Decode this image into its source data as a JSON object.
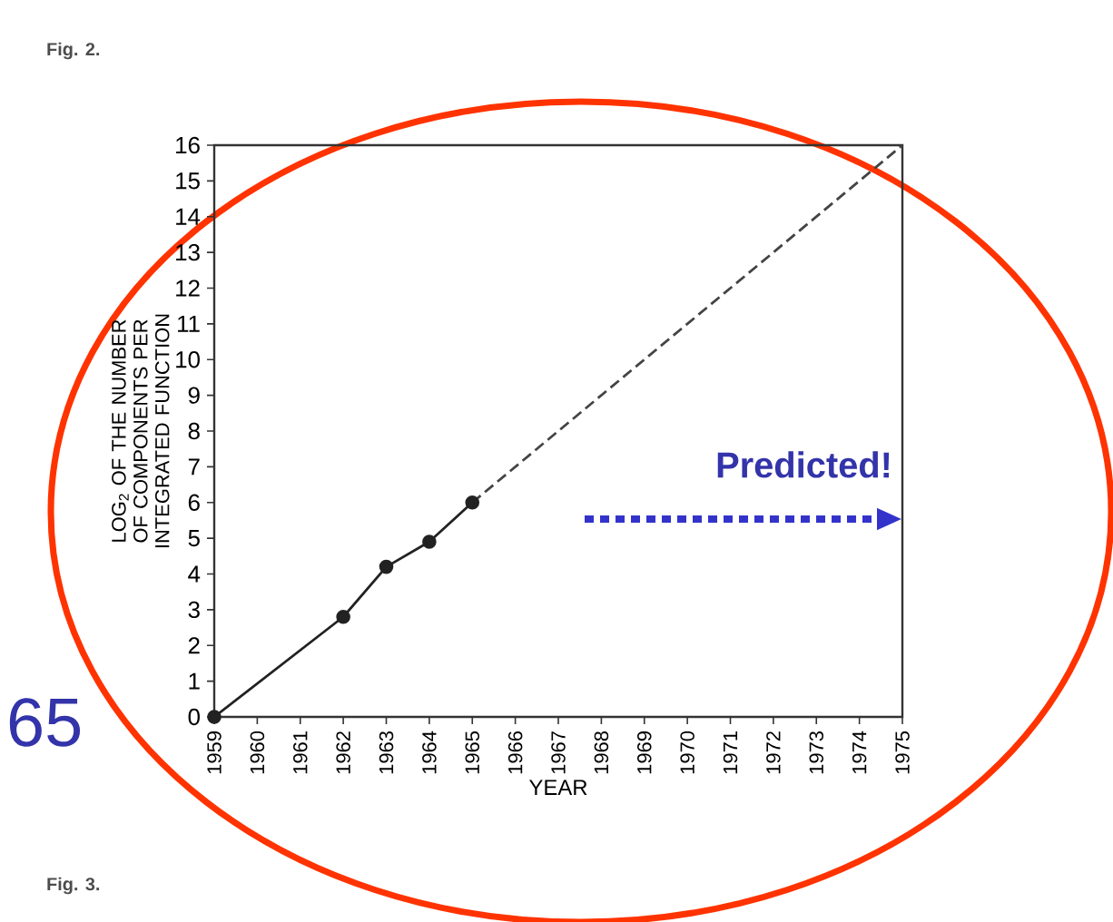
{
  "chart_data": {
    "type": "line",
    "xlabel": "YEAR",
    "ylabel": "LOG$_{2}$ OF THE NUMBER OF COMPONENTS PER INTEGRATED FUNCTION",
    "series": [
      {
        "color": "#222222",
        "x": [
          1959,
          1962,
          1963,
          1964,
          1965
        ],
        "values": [
          0,
          2.8,
          4.2,
          4.9,
          6.0
        ],
        "marker": "circle",
        "line_style": "solid"
      },
      {
        "color": "#444444",
        "x": [
          1965,
          1975
        ],
        "values": [
          6.0,
          16
        ],
        "marker": "none",
        "line_style": "dashed"
      }
    ],
    "xlim": [
      1959,
      1975
    ],
    "xticks": [
      1959,
      1960,
      1961,
      1962,
      1963,
      1964,
      1965,
      1966,
      1967,
      1968,
      1969,
      1970,
      1971,
      1972,
      1973,
      1974,
      1975
    ],
    "ylim": [
      0,
      16
    ],
    "yticks": [
      0,
      1,
      2,
      3,
      4,
      5,
      6,
      7,
      8,
      9,
      10,
      11,
      12,
      13,
      14,
      15,
      16
    ],
    "grid": false,
    "annotations": [
      "Fig. 2.",
      "Fig. 3.",
      "65",
      "Predicted!"
    ]
  }
}
